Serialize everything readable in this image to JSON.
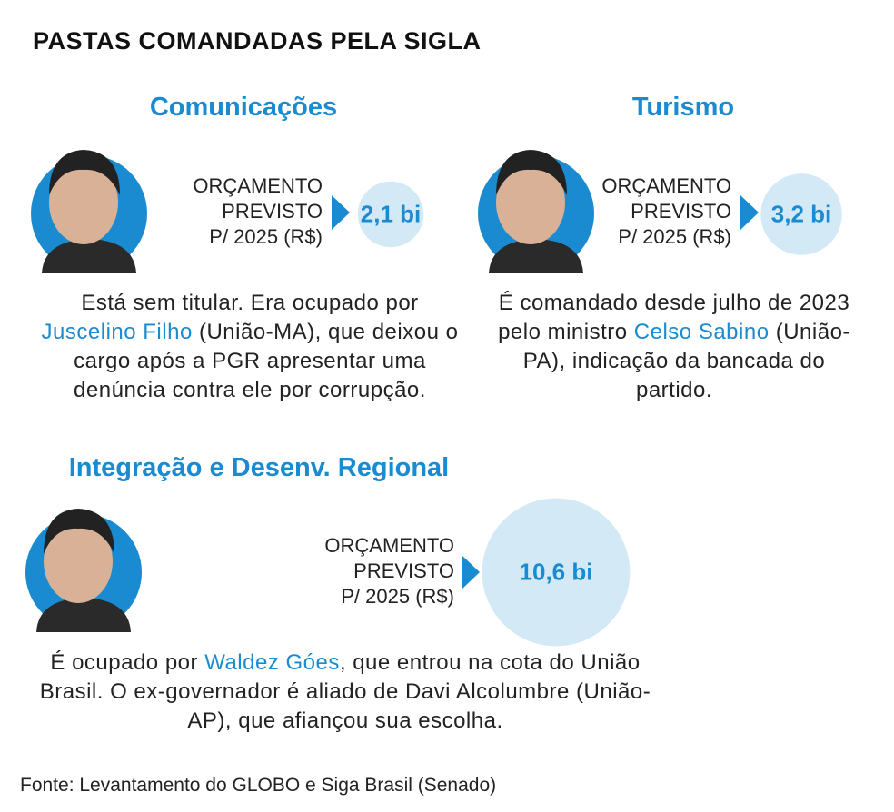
{
  "title": "PASTAS COMANDADAS PELA SIGLA",
  "sections": [
    {
      "heading": "Comunicações",
      "budget_label": [
        "ORÇAMENTO",
        "PREVISTO",
        "P/ 2025 (R$)"
      ],
      "budget": {
        "value": 2.1,
        "label": "2,1 bi"
      },
      "description": {
        "before": "Está sem titular. Era ocupado por",
        "name": "Juscelino Filho",
        "after": "(União-MA), que deixou o cargo após a PGR apresentar uma denúncia contra ele por corrupção."
      }
    },
    {
      "heading": "Turismo",
      "budget_label": [
        "ORÇAMENTO",
        "PREVISTO",
        "P/ 2025 (R$)"
      ],
      "budget": {
        "value": 3.2,
        "label": "3,2 bi"
      },
      "description": {
        "before": "É comandado desde julho de 2023 pelo ministro",
        "name": "Celso Sabino",
        "after": "(União-PA), indicação da bancada do partido."
      }
    },
    {
      "heading": "Integração e Desenv. Regional",
      "budget_label": [
        "ORÇAMENTO",
        "PREVISTO",
        "P/ 2025 (R$)"
      ],
      "budget": {
        "value": 10.6,
        "label": "10,6 bi"
      },
      "description": {
        "before": "É ocupado por",
        "name": "Waldez Góes",
        "after": ", que entrou na cota do União Brasil. O ex-governador é aliado de Davi Alcolumbre (União-AP), que afiançou sua escolha."
      }
    }
  ],
  "source": "Fonte: Levantamento do GLOBO e Siga Brasil (Senado)"
}
